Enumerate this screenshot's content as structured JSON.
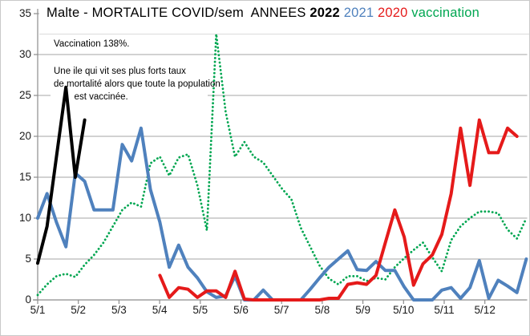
{
  "title": {
    "segments": [
      {
        "text": "Malte - MORTALITE COVID/sem  ANNEES ",
        "color": "#000000",
        "bold": false
      },
      {
        "text": "2022",
        "color": "#000000",
        "bold": true
      },
      {
        "text": " 2021",
        "color": "#4f81bd",
        "bold": false
      },
      {
        "text": " 2020",
        "color": "#e51a1a",
        "bold": false
      },
      {
        "text": " vaccination",
        "color": "#00a651",
        "bold": false
      }
    ]
  },
  "chart_data": {
    "type": "line",
    "title": "Malte - MORTALITE COVID/sem  ANNEES 2022 2021 2020 vaccination",
    "xlabel": "",
    "ylabel": "",
    "ylim": [
      0,
      35
    ],
    "grid": "horizontal",
    "legend_position": "in-title",
    "x_unit": "week (weekly data, ~4.3 points per month label)",
    "x_tick_labels": [
      "5/1",
      "5/2",
      "5/3",
      "5/4",
      "5/5",
      "5/6",
      "5/7",
      "5/8",
      "5/9",
      "5/10",
      "5/11",
      "5/12"
    ],
    "y_ticks": [
      0,
      5,
      10,
      15,
      20,
      25,
      30,
      35
    ],
    "annotations": [
      "Vaccination 138%.",
      "Une ile qui vit ses plus forts taux\nde mortalité alors que toute la population\n        est vaccinée."
    ],
    "series": [
      {
        "name": "vaccination",
        "color": "#00a651",
        "style": "dotted",
        "start_week": 1,
        "values": [
          0.6,
          1.9,
          2.9,
          3.2,
          2.8,
          4.3,
          5.5,
          7,
          9,
          11,
          11.9,
          11.4,
          16.7,
          17.5,
          15.2,
          17.4,
          17.8,
          14,
          8.5,
          32.5,
          23,
          17.5,
          19.3,
          17.5,
          16.8,
          15.2,
          13.6,
          12.3,
          8.8,
          6.5,
          4.2,
          2.6,
          1.9,
          2.9,
          2.9,
          2.3,
          2.7,
          2.5,
          4,
          5.1,
          6.1,
          7,
          5.2,
          3.5,
          7.3,
          9,
          10,
          10.8,
          10.8,
          10.6,
          8.6,
          7.5,
          10
        ]
      },
      {
        "name": "2021",
        "color": "#4f81bd",
        "style": "solid",
        "start_week": 1,
        "values": [
          10,
          13,
          9.5,
          6.5,
          15.5,
          14.5,
          11,
          11,
          11,
          19,
          17,
          21,
          13.5,
          9.5,
          4,
          6.7,
          4,
          2.7,
          1,
          0.3,
          0.5,
          2.9,
          0,
          0,
          1.2,
          0,
          0,
          0,
          0,
          1.3,
          2.7,
          4,
          5,
          6,
          3.7,
          3.6,
          4.7,
          3.6,
          3.6,
          1.6,
          0,
          0,
          0,
          1.2,
          1.5,
          0.2,
          1.5,
          4.8,
          0.2,
          2.4,
          1.7,
          0.9,
          5
        ]
      },
      {
        "name": "2020",
        "color": "#e51a1a",
        "style": "solid",
        "start_week": 14,
        "values": [
          3,
          0.3,
          1.5,
          1.3,
          0.3,
          1.1,
          1.1,
          0.3,
          3.5,
          0.1,
          0,
          0,
          0,
          0,
          0,
          0,
          0,
          0,
          0.2,
          0.2,
          1.9,
          2.1,
          1.9,
          3,
          7,
          11,
          7.7,
          1.8,
          4.4,
          5.5,
          8,
          13,
          21,
          14,
          22,
          18,
          18,
          21,
          20
        ]
      },
      {
        "name": "2022",
        "color": "#000000",
        "style": "solid",
        "start_week": 1,
        "values": [
          4.5,
          9,
          17.5,
          26,
          15,
          22
        ]
      }
    ]
  }
}
